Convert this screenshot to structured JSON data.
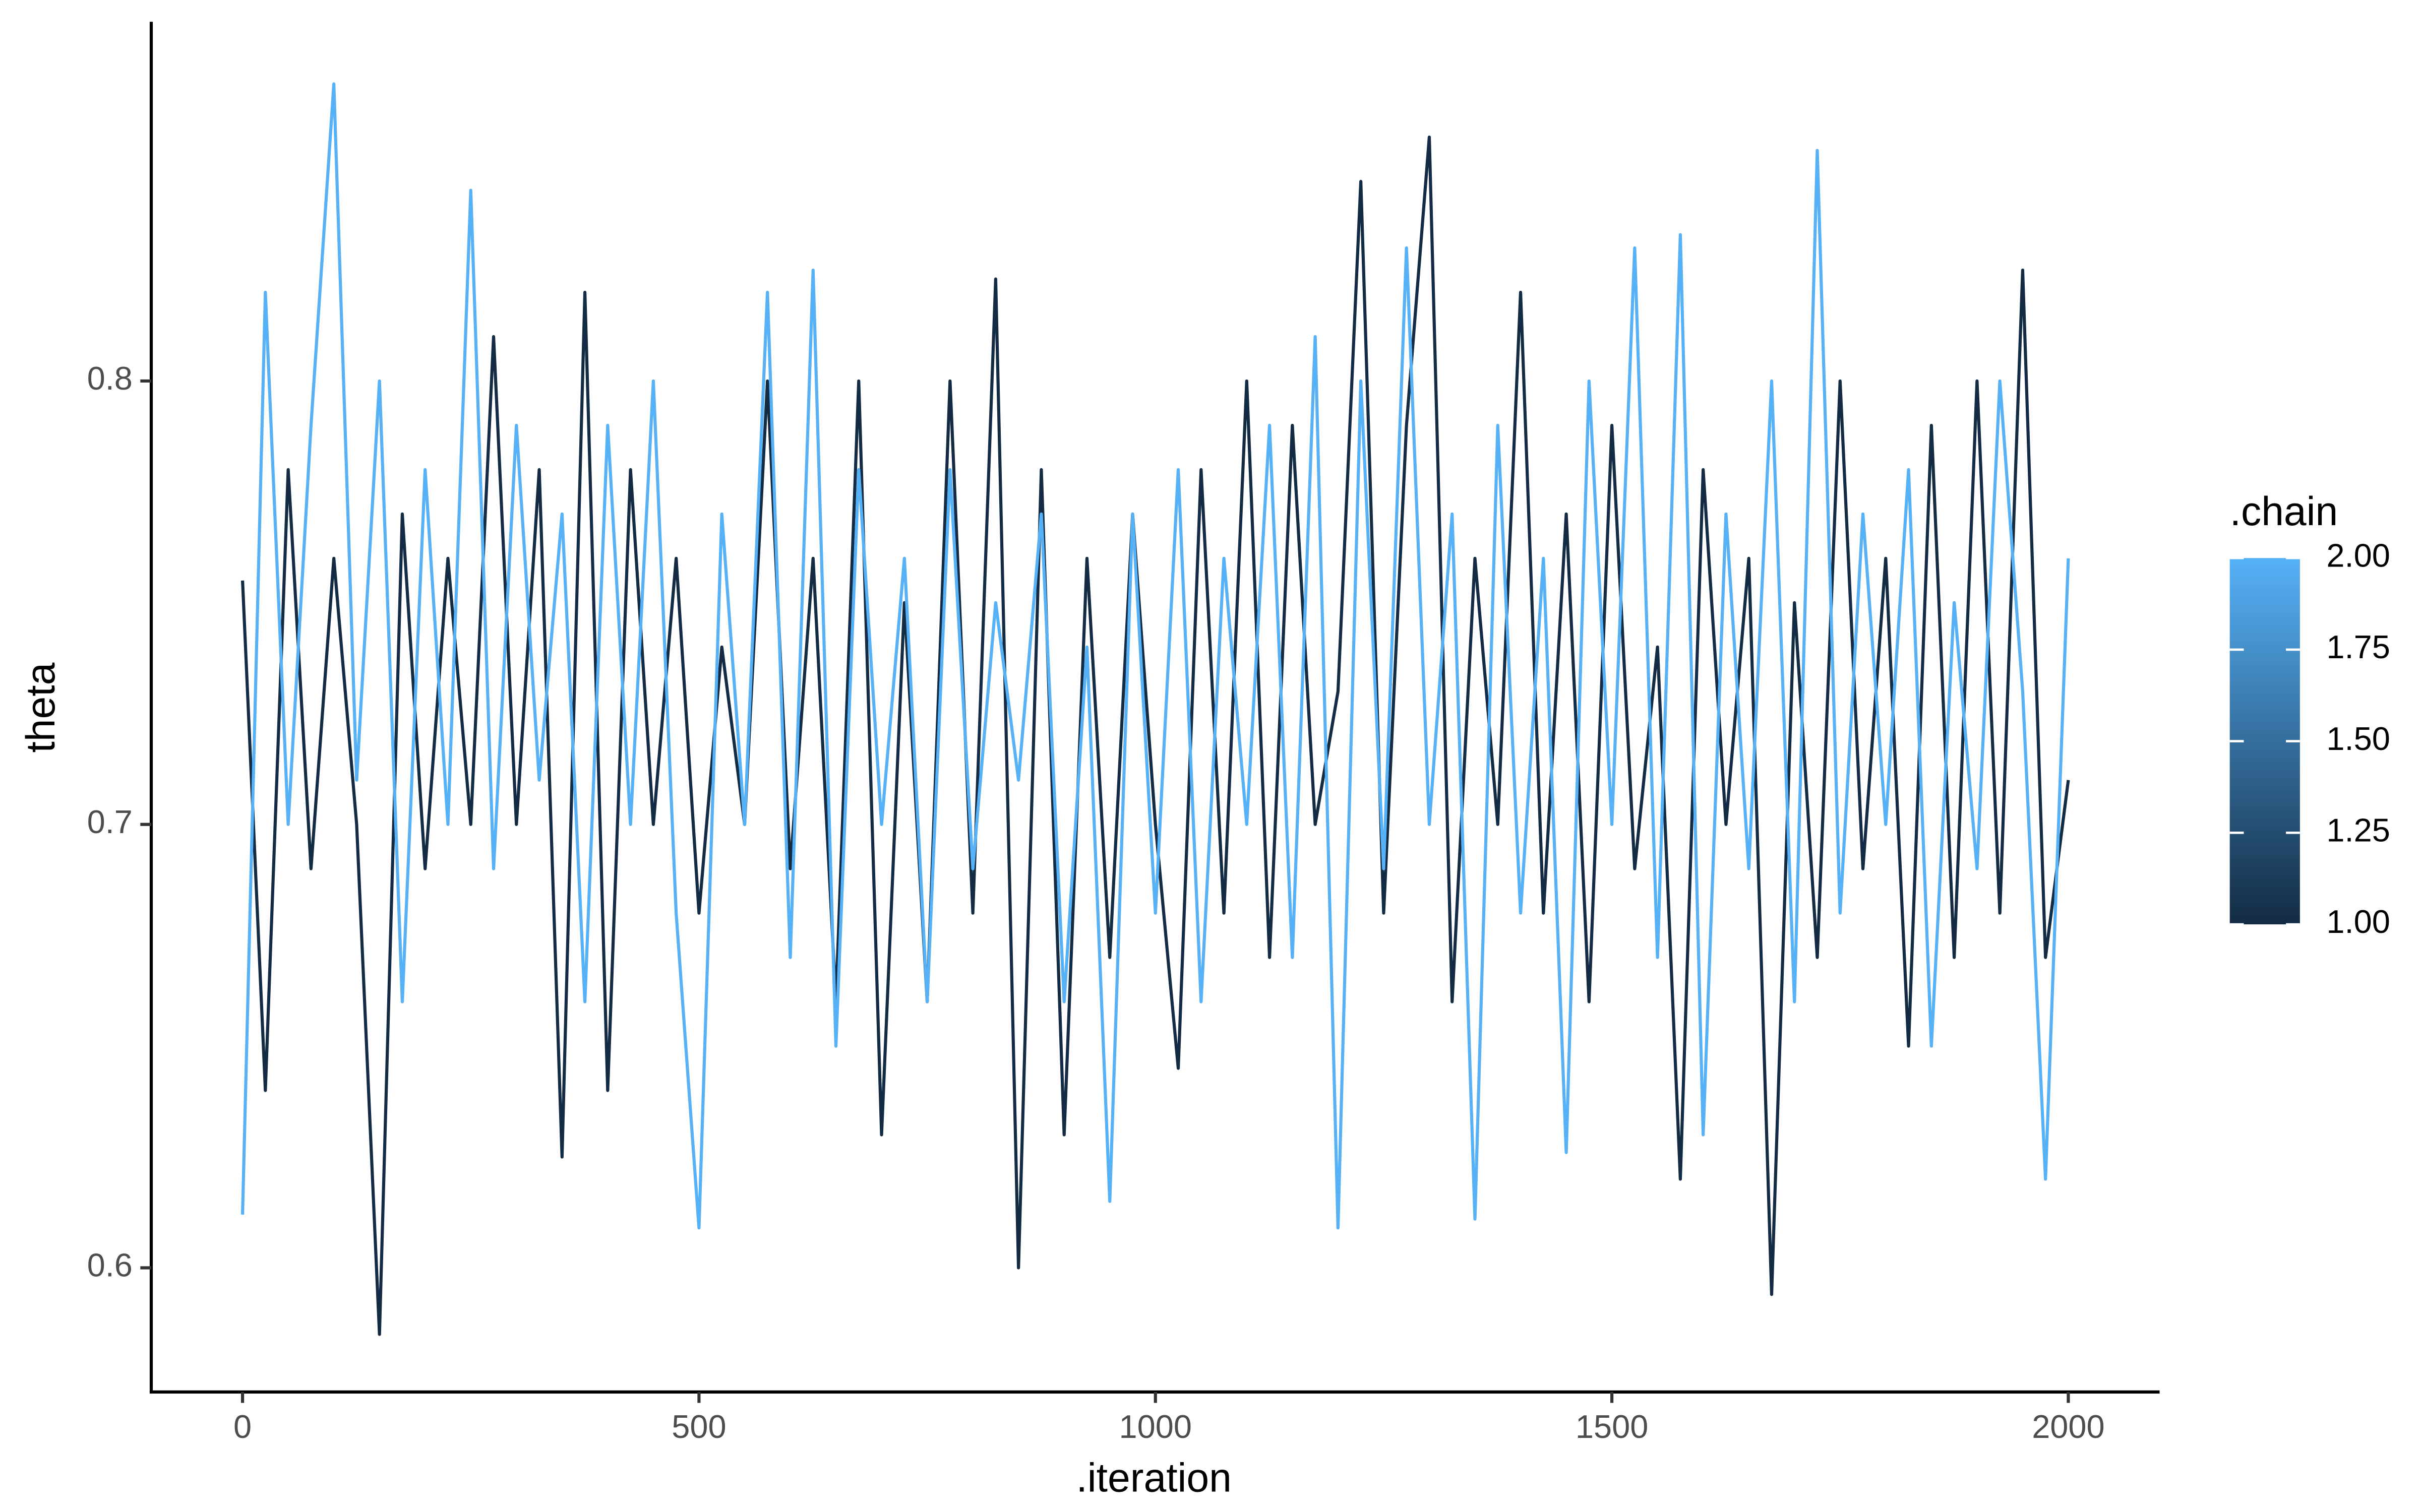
{
  "chart_data": {
    "type": "line",
    "x_label": ".iteration",
    "y_label": "theta",
    "x": [
      0,
      25,
      50,
      75,
      100,
      125,
      150,
      175,
      200,
      225,
      250,
      275,
      300,
      325,
      350,
      375,
      400,
      425,
      450,
      475,
      500,
      525,
      550,
      575,
      600,
      625,
      650,
      675,
      700,
      725,
      750,
      775,
      800,
      825,
      850,
      875,
      900,
      925,
      950,
      975,
      1000,
      1025,
      1050,
      1075,
      1100,
      1125,
      1150,
      1175,
      1200,
      1225,
      1250,
      1275,
      1300,
      1325,
      1350,
      1375,
      1400,
      1425,
      1450,
      1475,
      1500,
      1525,
      1550,
      1575,
      1600,
      1625,
      1650,
      1675,
      1700,
      1725,
      1750,
      1775,
      1800,
      1825,
      1850,
      1875,
      1900,
      1925,
      1950,
      1975,
      2000
    ],
    "series": [
      {
        "name": "1",
        "color": "#132B43",
        "values": [
          0.755,
          0.64,
          0.78,
          0.69,
          0.76,
          0.7,
          0.585,
          0.77,
          0.69,
          0.76,
          0.7,
          0.81,
          0.7,
          0.78,
          0.625,
          0.82,
          0.64,
          0.78,
          0.7,
          0.76,
          0.68,
          0.74,
          0.7,
          0.8,
          0.69,
          0.76,
          0.66,
          0.8,
          0.63,
          0.75,
          0.66,
          0.8,
          0.68,
          0.823,
          0.6,
          0.78,
          0.63,
          0.76,
          0.67,
          0.77,
          0.7,
          0.645,
          0.78,
          0.68,
          0.8,
          0.67,
          0.79,
          0.7,
          0.73,
          0.845,
          0.68,
          0.79,
          0.855,
          0.66,
          0.76,
          0.7,
          0.82,
          0.68,
          0.77,
          0.66,
          0.79,
          0.69,
          0.74,
          0.62,
          0.78,
          0.7,
          0.76,
          0.594,
          0.75,
          0.67,
          0.8,
          0.69,
          0.76,
          0.65,
          0.79,
          0.67,
          0.8,
          0.68,
          0.825,
          0.67,
          0.71
        ]
      },
      {
        "name": "2",
        "color": "#56B1F7",
        "values": [
          0.612,
          0.82,
          0.7,
          0.79,
          0.867,
          0.71,
          0.8,
          0.66,
          0.78,
          0.7,
          0.843,
          0.69,
          0.79,
          0.71,
          0.77,
          0.66,
          0.79,
          0.7,
          0.8,
          0.68,
          0.609,
          0.77,
          0.7,
          0.82,
          0.67,
          0.825,
          0.65,
          0.78,
          0.7,
          0.76,
          0.66,
          0.78,
          0.69,
          0.75,
          0.71,
          0.77,
          0.66,
          0.74,
          0.615,
          0.77,
          0.68,
          0.78,
          0.66,
          0.76,
          0.7,
          0.79,
          0.67,
          0.81,
          0.609,
          0.8,
          0.69,
          0.83,
          0.7,
          0.77,
          0.611,
          0.79,
          0.68,
          0.76,
          0.626,
          0.8,
          0.7,
          0.83,
          0.67,
          0.833,
          0.63,
          0.77,
          0.69,
          0.8,
          0.66,
          0.852,
          0.68,
          0.77,
          0.7,
          0.78,
          0.65,
          0.75,
          0.69,
          0.8,
          0.73,
          0.62,
          0.76
        ]
      }
    ],
    "xlim": [
      -100,
      2100
    ],
    "xticks": [
      0,
      500,
      1000,
      1500,
      2000
    ],
    "ylim": [
      0.572,
      0.881
    ],
    "yticks": [
      0.6,
      0.7,
      0.8
    ],
    "legend": {
      "title": ".chain",
      "limits": [
        1,
        2
      ],
      "low_color": "#132B43",
      "high_color": "#56B1F7",
      "ticks": [
        {
          "value": 1,
          "label": "1.00"
        },
        {
          "value": 1.25,
          "label": "1.25"
        },
        {
          "value": 1.5,
          "label": "1.50"
        },
        {
          "value": 1.75,
          "label": "1.75"
        },
        {
          "value": 2,
          "label": "2.00"
        }
      ]
    }
  }
}
